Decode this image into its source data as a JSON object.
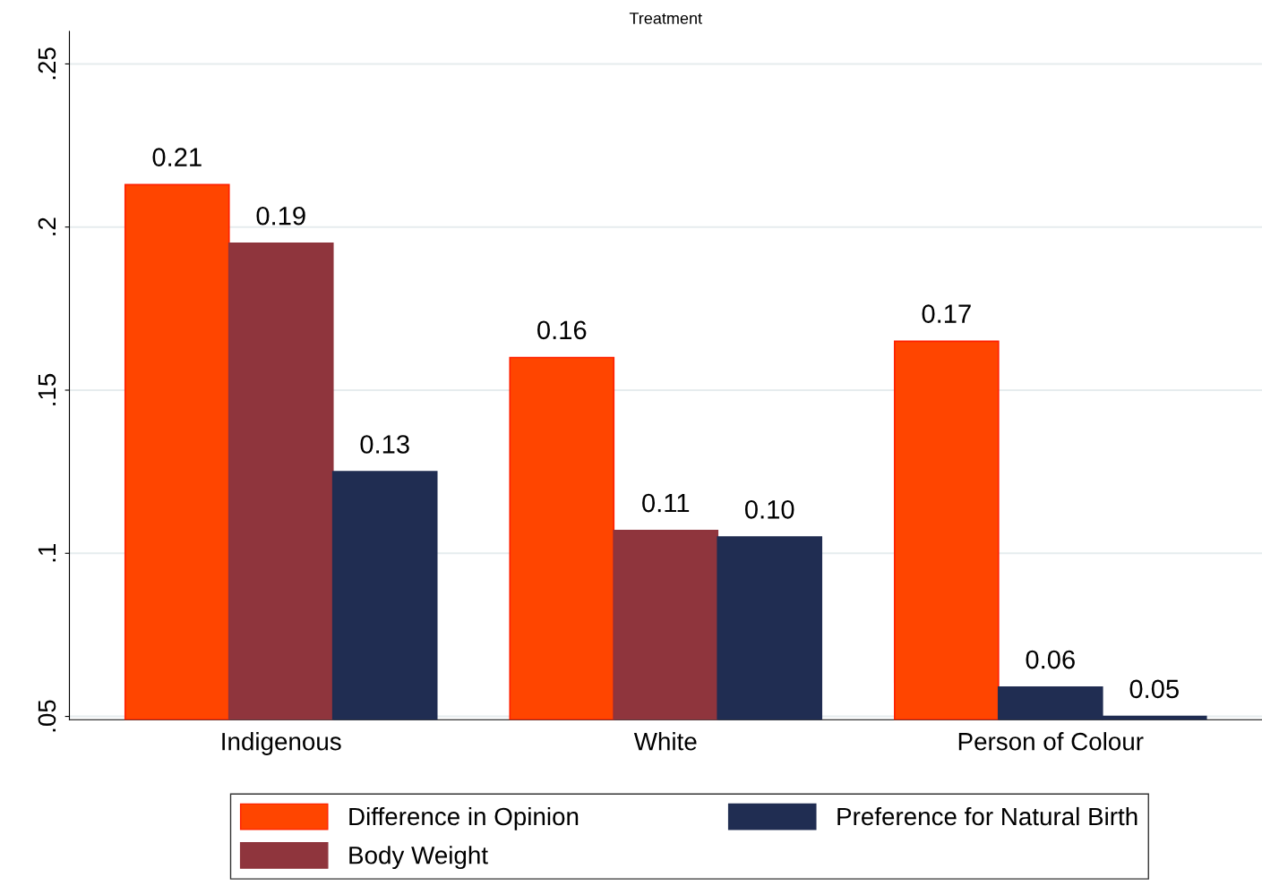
{
  "chart_data": {
    "type": "bar",
    "title": "Treatment",
    "categories": [
      "Indigenous",
      "White",
      "Person of Colour"
    ],
    "series": [
      {
        "name": "Difference in Opinion",
        "color": "#ff4500",
        "values": [
          0.213,
          0.16,
          0.165
        ],
        "value_labels": [
          "0.21",
          "0.16",
          "0.17"
        ]
      },
      {
        "name": "Body Weight",
        "color": "#8f353d",
        "colors": [
          "#8f353d",
          "#8f353d",
          "#202d52"
        ],
        "values": [
          0.195,
          0.107,
          0.059
        ],
        "value_labels": [
          "0.19",
          "0.11",
          "0.06"
        ]
      },
      {
        "name": "Preference for Natural Birth",
        "color": "#202d52",
        "values": [
          0.125,
          0.105,
          0.05
        ],
        "value_labels": [
          "0.13",
          "0.10",
          "0.05"
        ]
      }
    ],
    "ylim": [
      0.049,
      0.26
    ],
    "yticks": [
      {
        "value": 0.05,
        "label": ".05"
      },
      {
        "value": 0.1,
        "label": ".1"
      },
      {
        "value": 0.15,
        "label": ".15"
      },
      {
        "value": 0.2,
        "label": ".2"
      },
      {
        "value": 0.25,
        "label": ".25"
      }
    ],
    "grid": "y",
    "legend": "bottom"
  }
}
